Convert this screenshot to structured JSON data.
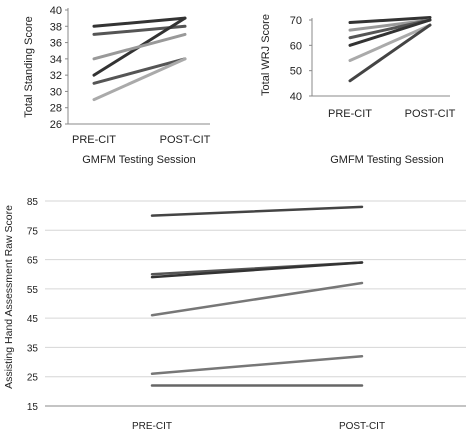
{
  "chart_data": [
    {
      "type": "line",
      "categories": [
        "PRE-CIT",
        "POST-CIT"
      ],
      "ylabel": "Total Standing Score",
      "xlabel": "GMFM Testing Session",
      "ylim": [
        26,
        40
      ],
      "yticks": [
        26,
        28,
        30,
        32,
        34,
        36,
        38,
        40
      ],
      "grid": false,
      "series": [
        {
          "values": [
            38,
            39
          ],
          "color": "#333333"
        },
        {
          "values": [
            37,
            38
          ],
          "color": "#555555"
        },
        {
          "values": [
            32,
            39
          ],
          "color": "#333333"
        },
        {
          "values": [
            34,
            37
          ],
          "color": "#999999"
        },
        {
          "values": [
            31,
            34
          ],
          "color": "#555555"
        },
        {
          "values": [
            29,
            34
          ],
          "color": "#aaaaaa"
        }
      ]
    },
    {
      "type": "line",
      "categories": [
        "PRE-CIT",
        "POST-CIT"
      ],
      "ylabel": "Total WRJ Score",
      "xlabel": "GMFM Testing Session",
      "ylim": [
        40,
        70
      ],
      "yticks": [
        40,
        50,
        60,
        70
      ],
      "grid": false,
      "series": [
        {
          "values": [
            69,
            71
          ],
          "color": "#333333"
        },
        {
          "values": [
            66,
            70
          ],
          "color": "#999999"
        },
        {
          "values": [
            63,
            70
          ],
          "color": "#555555"
        },
        {
          "values": [
            60,
            70
          ],
          "color": "#333333"
        },
        {
          "values": [
            54,
            68
          ],
          "color": "#aaaaaa"
        },
        {
          "values": [
            46,
            68
          ],
          "color": "#444444"
        }
      ]
    },
    {
      "type": "line",
      "categories": [
        "PRE-CIT",
        "POST-CIT"
      ],
      "ylabel": "Assisting Hand Assessment Raw Score",
      "xlabel": "",
      "ylim": [
        15,
        85
      ],
      "yticks": [
        15,
        25,
        35,
        45,
        55,
        65,
        75,
        85
      ],
      "grid": true,
      "series": [
        {
          "values": [
            80,
            83
          ],
          "color": "#444444"
        },
        {
          "values": [
            60,
            64
          ],
          "color": "#555555"
        },
        {
          "values": [
            59,
            64
          ],
          "color": "#333333"
        },
        {
          "values": [
            46,
            57
          ],
          "color": "#777777"
        },
        {
          "values": [
            26,
            32
          ],
          "color": "#777777"
        },
        {
          "values": [
            22,
            22
          ],
          "color": "#666666"
        }
      ]
    }
  ]
}
